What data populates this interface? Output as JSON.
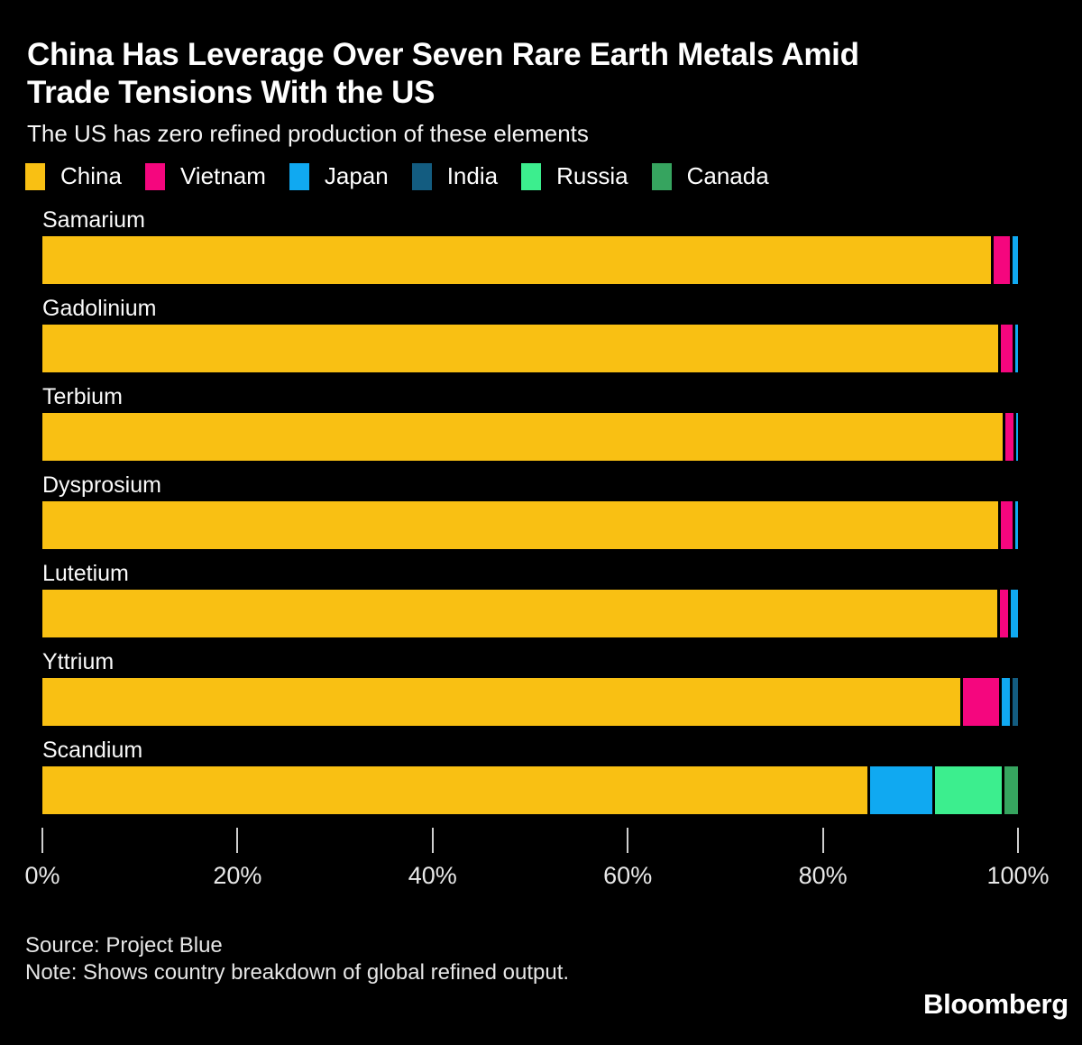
{
  "header": {
    "title_line1": "China Has Leverage Over Seven Rare Earth Metals Amid",
    "title_line2": "Trade Tensions With the US",
    "subtitle": "The US has zero refined production of these elements"
  },
  "legend": [
    {
      "label": "China",
      "color": "#F9C013"
    },
    {
      "label": "Vietnam",
      "color": "#F5067E"
    },
    {
      "label": "Japan",
      "color": "#10A9F1"
    },
    {
      "label": "India",
      "color": "#135C80"
    },
    {
      "label": "Russia",
      "color": "#3CEE8E"
    },
    {
      "label": "Canada",
      "color": "#36A45F"
    }
  ],
  "chart_data": {
    "type": "bar",
    "orientation": "horizontal",
    "stacked": true,
    "unit": "percent of global refined output",
    "xlim": [
      0,
      100
    ],
    "grid": false,
    "legend_position": "top",
    "x_ticks": [
      {
        "label": "0%",
        "value": 0
      },
      {
        "label": "20%",
        "value": 20
      },
      {
        "label": "40%",
        "value": 40
      },
      {
        "label": "60%",
        "value": 60
      },
      {
        "label": "80%",
        "value": 80
      },
      {
        "label": "100%",
        "value": 100
      }
    ],
    "categories": [
      "Samarium",
      "Gadolinium",
      "Terbium",
      "Dysprosium",
      "Lutetium",
      "Yttrium",
      "Scandium"
    ],
    "rows": [
      {
        "category": "Samarium",
        "segments": [
          {
            "country": "China",
            "value": 97.2
          },
          {
            "country": "Vietnam",
            "value": 2.0
          },
          {
            "country": "Japan",
            "value": 0.8
          }
        ]
      },
      {
        "category": "Gadolinium",
        "segments": [
          {
            "country": "China",
            "value": 98.0
          },
          {
            "country": "Vietnam",
            "value": 1.4
          },
          {
            "country": "Japan",
            "value": 0.6
          }
        ]
      },
      {
        "category": "Terbium",
        "segments": [
          {
            "country": "China",
            "value": 98.4
          },
          {
            "country": "Vietnam",
            "value": 1.1
          },
          {
            "country": "Japan",
            "value": 0.5
          }
        ]
      },
      {
        "category": "Dysprosium",
        "segments": [
          {
            "country": "China",
            "value": 98.0
          },
          {
            "country": "Vietnam",
            "value": 1.4
          },
          {
            "country": "Japan",
            "value": 0.6
          }
        ]
      },
      {
        "category": "Lutetium",
        "segments": [
          {
            "country": "China",
            "value": 97.9
          },
          {
            "country": "Vietnam",
            "value": 1.1
          },
          {
            "country": "Japan",
            "value": 1.0
          }
        ]
      },
      {
        "category": "Yttrium",
        "segments": [
          {
            "country": "China",
            "value": 94.1
          },
          {
            "country": "Vietnam",
            "value": 4.0
          },
          {
            "country": "Japan",
            "value": 1.1
          },
          {
            "country": "India",
            "value": 0.8
          }
        ]
      },
      {
        "category": "Scandium",
        "segments": [
          {
            "country": "China",
            "value": 84.6
          },
          {
            "country": "Japan",
            "value": 6.6
          },
          {
            "country": "Russia",
            "value": 7.1
          },
          {
            "country": "Canada",
            "value": 1.7
          }
        ]
      }
    ]
  },
  "footer": {
    "source": "Source: Project Blue",
    "note": "Note: Shows country breakdown of global refined output.",
    "brand": "Bloomberg"
  }
}
